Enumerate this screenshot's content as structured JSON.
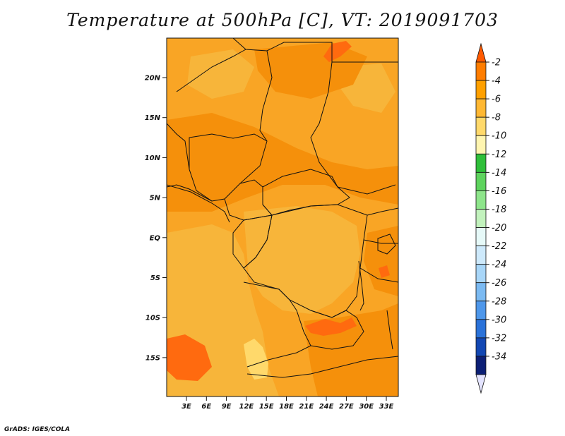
{
  "title": "Temperature at 500hPa [C], VT: 2019091703",
  "credit": "GrADS: IGES/COLA",
  "lat_labels": [
    "20N",
    "15N",
    "10N",
    "5N",
    "EQ",
    "5S",
    "10S",
    "15S"
  ],
  "lon_labels": [
    "3E",
    "6E",
    "9E",
    "12E",
    "15E",
    "18E",
    "21E",
    "24E",
    "27E",
    "30E",
    "33E"
  ],
  "colorbar": {
    "labels": [
      "-2",
      "-4",
      "-6",
      "-8",
      "-10",
      "-12",
      "-14",
      "-16",
      "-18",
      "-20",
      "-22",
      "-24",
      "-26",
      "-28",
      "-30",
      "-32",
      "-34"
    ],
    "colors": [
      "#ff5a00",
      "#ff7d00",
      "#ffa000",
      "#ffb833",
      "#ffd96b",
      "#fff5b0",
      "#2fbf3a",
      "#5ed35e",
      "#8ee58b",
      "#c2f2bd",
      "#e6f9f8",
      "#cde9fb",
      "#a8d6f8",
      "#7bbaf2",
      "#4e97ea",
      "#2a72d9",
      "#1247b3",
      "#0c1f75",
      "#e4e4ff"
    ]
  },
  "colors": {
    "base": "#f9a525",
    "warm": "#f5900b",
    "warmer": "#ff6a0f",
    "cool": "#f7b53a",
    "pale": "#ffd96b",
    "border": "#111111"
  }
}
